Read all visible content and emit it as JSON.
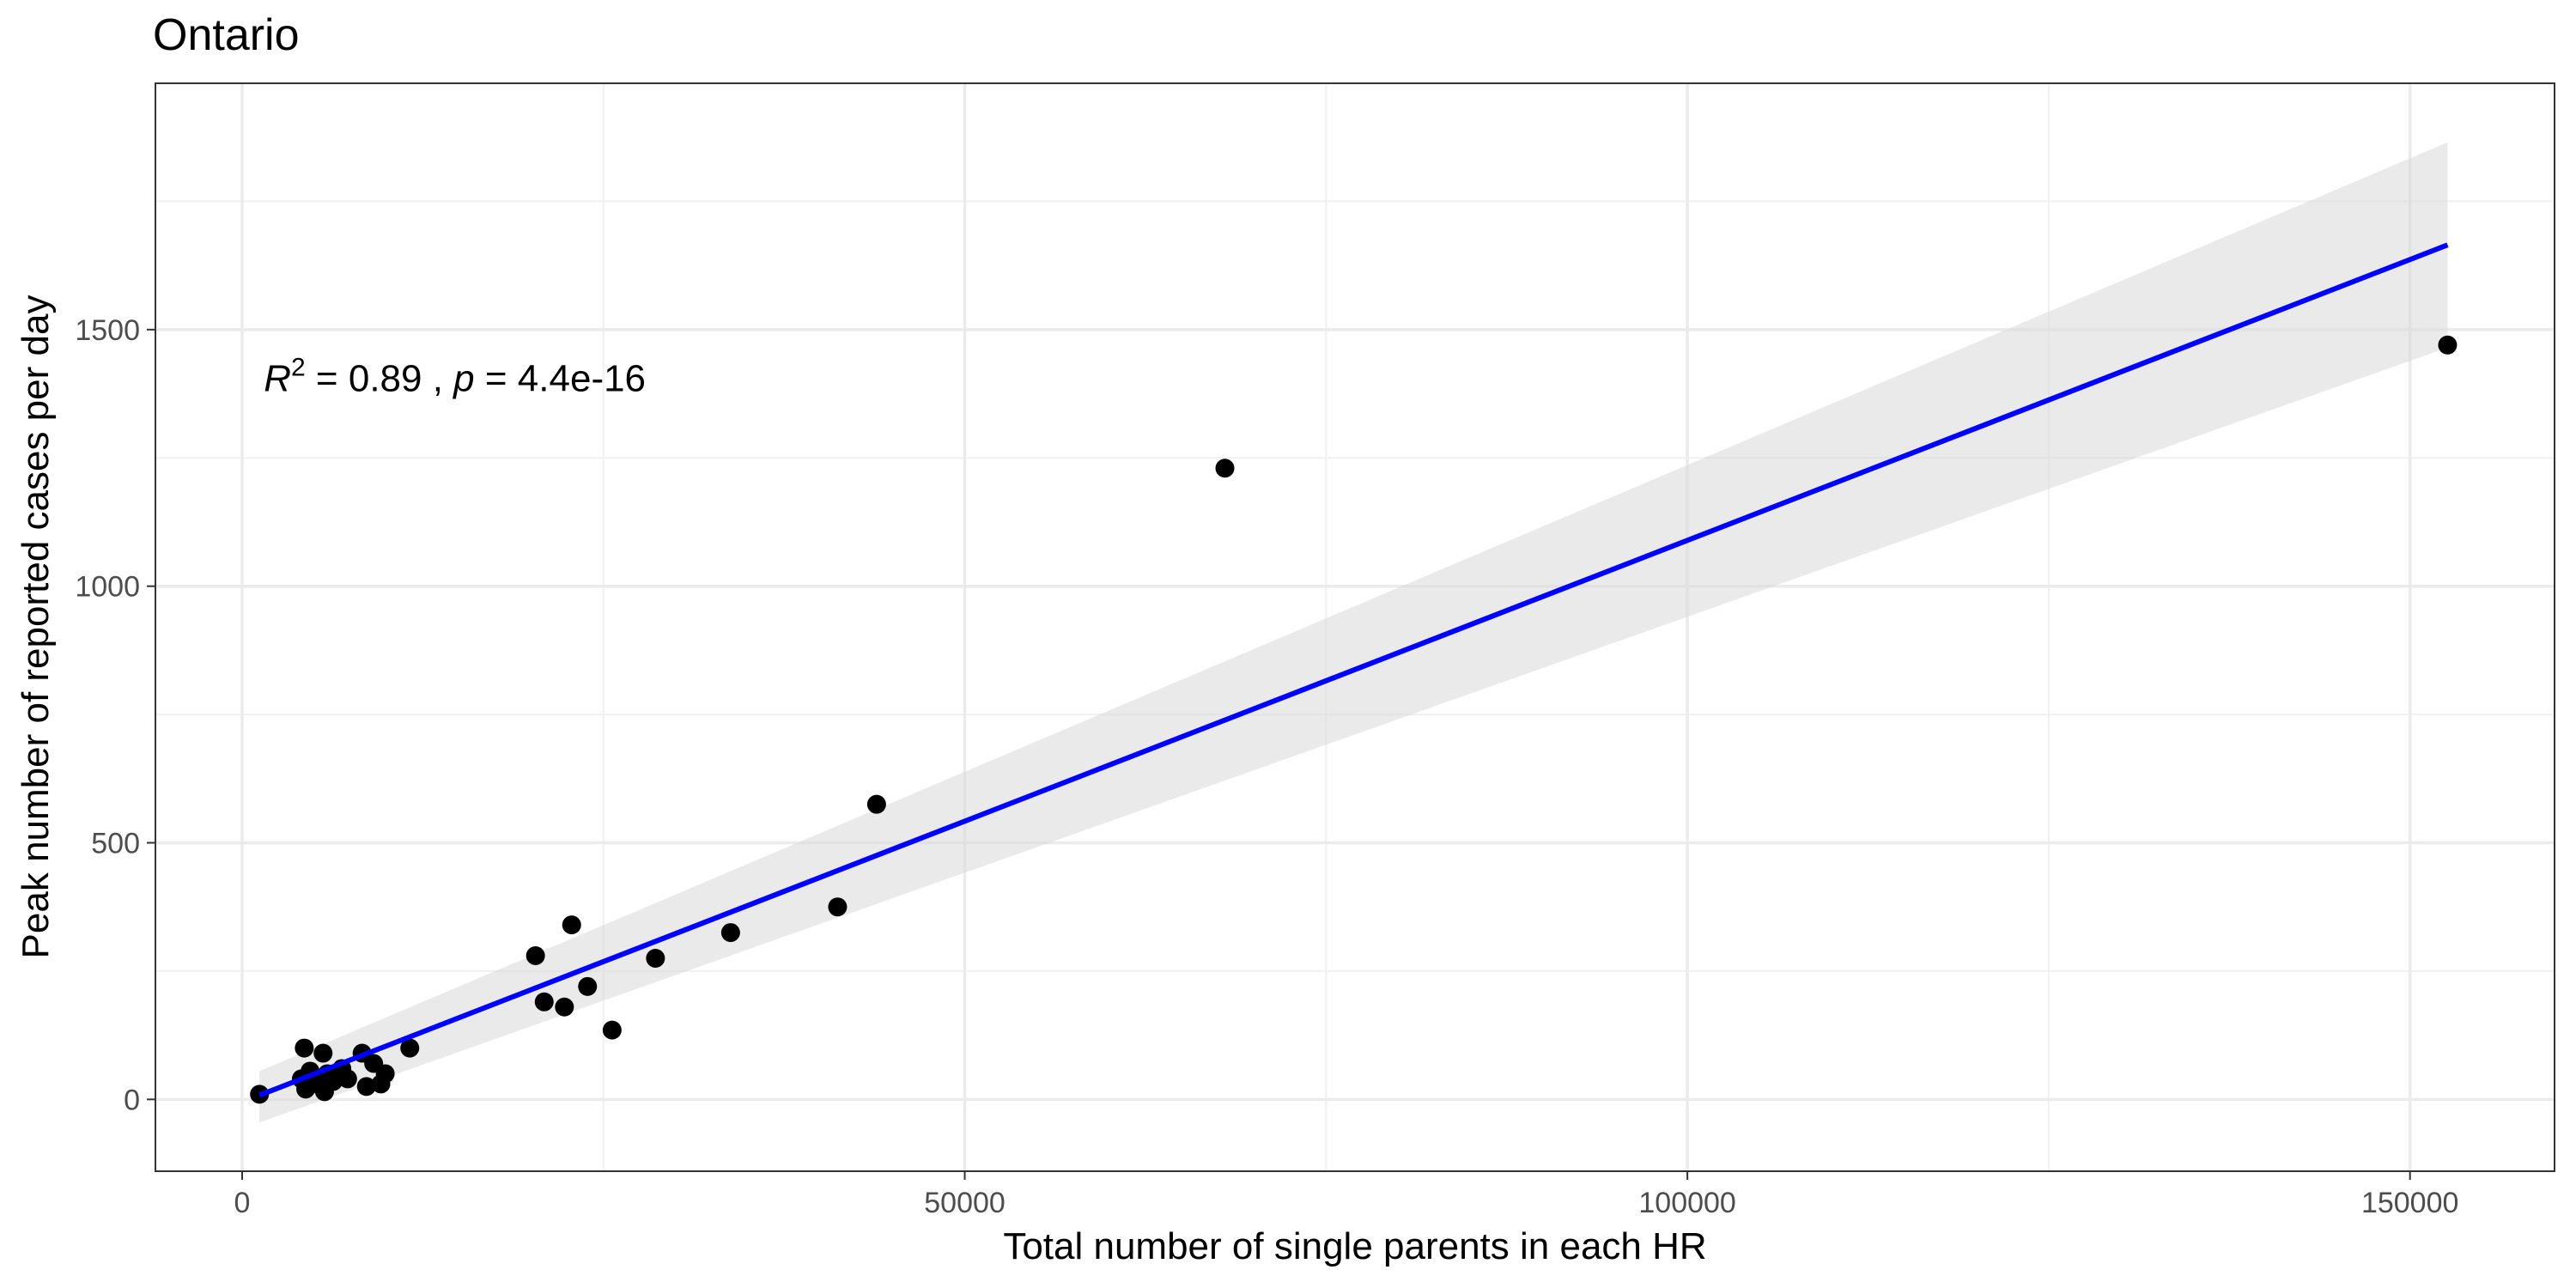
{
  "chart_data": {
    "type": "scatter",
    "title": "Ontario",
    "xlabel": "Total number of single parents in each HR",
    "ylabel": "Peak number of reported cases per day",
    "xlim": [
      -6000,
      160000
    ],
    "ylim": [
      -140,
      1980
    ],
    "x_ticks": [
      0,
      50000,
      100000,
      150000
    ],
    "x_tick_labels": [
      "0",
      "50000",
      "100000",
      "150000"
    ],
    "y_ticks": [
      0,
      500,
      1000,
      1500
    ],
    "y_tick_labels": [
      "0",
      "500",
      "1000",
      "1500"
    ],
    "grid": true,
    "legend": "none",
    "annotation": {
      "r_symbol": "R",
      "r_exponent": "2",
      "r_value": " = 0.89 , ",
      "p_symbol": "p",
      "p_value": " = 4.4e-16",
      "x": 1500,
      "y": 1380
    },
    "points": [
      {
        "x": 1200,
        "y": 10
      },
      {
        "x": 4300,
        "y": 100
      },
      {
        "x": 4100,
        "y": 40
      },
      {
        "x": 4400,
        "y": 20
      },
      {
        "x": 4700,
        "y": 55
      },
      {
        "x": 5200,
        "y": 30
      },
      {
        "x": 5600,
        "y": 90
      },
      {
        "x": 5700,
        "y": 15
      },
      {
        "x": 5900,
        "y": 50
      },
      {
        "x": 6300,
        "y": 35
      },
      {
        "x": 6900,
        "y": 60
      },
      {
        "x": 7300,
        "y": 40
      },
      {
        "x": 8300,
        "y": 90
      },
      {
        "x": 8600,
        "y": 25
      },
      {
        "x": 9100,
        "y": 70
      },
      {
        "x": 9600,
        "y": 30
      },
      {
        "x": 9900,
        "y": 50
      },
      {
        "x": 11600,
        "y": 100
      },
      {
        "x": 20300,
        "y": 280
      },
      {
        "x": 20900,
        "y": 190
      },
      {
        "x": 22300,
        "y": 180
      },
      {
        "x": 22800,
        "y": 340
      },
      {
        "x": 23900,
        "y": 220
      },
      {
        "x": 25600,
        "y": 135
      },
      {
        "x": 28600,
        "y": 275
      },
      {
        "x": 33800,
        "y": 325
      },
      {
        "x": 41200,
        "y": 375
      },
      {
        "x": 43900,
        "y": 575
      },
      {
        "x": 68000,
        "y": 1230
      },
      {
        "x": 152600,
        "y": 1470
      }
    ],
    "regression": {
      "x_start": 1200,
      "x_end": 152600,
      "y_start": 8,
      "y_end": 1665,
      "ci_upper_start": 55,
      "ci_upper_end": 1865,
      "ci_lower_start": -45,
      "ci_lower_end": 1465,
      "line_color": "#0000ff",
      "band_color": "#d9d9d9"
    },
    "point_color": "#000000"
  }
}
